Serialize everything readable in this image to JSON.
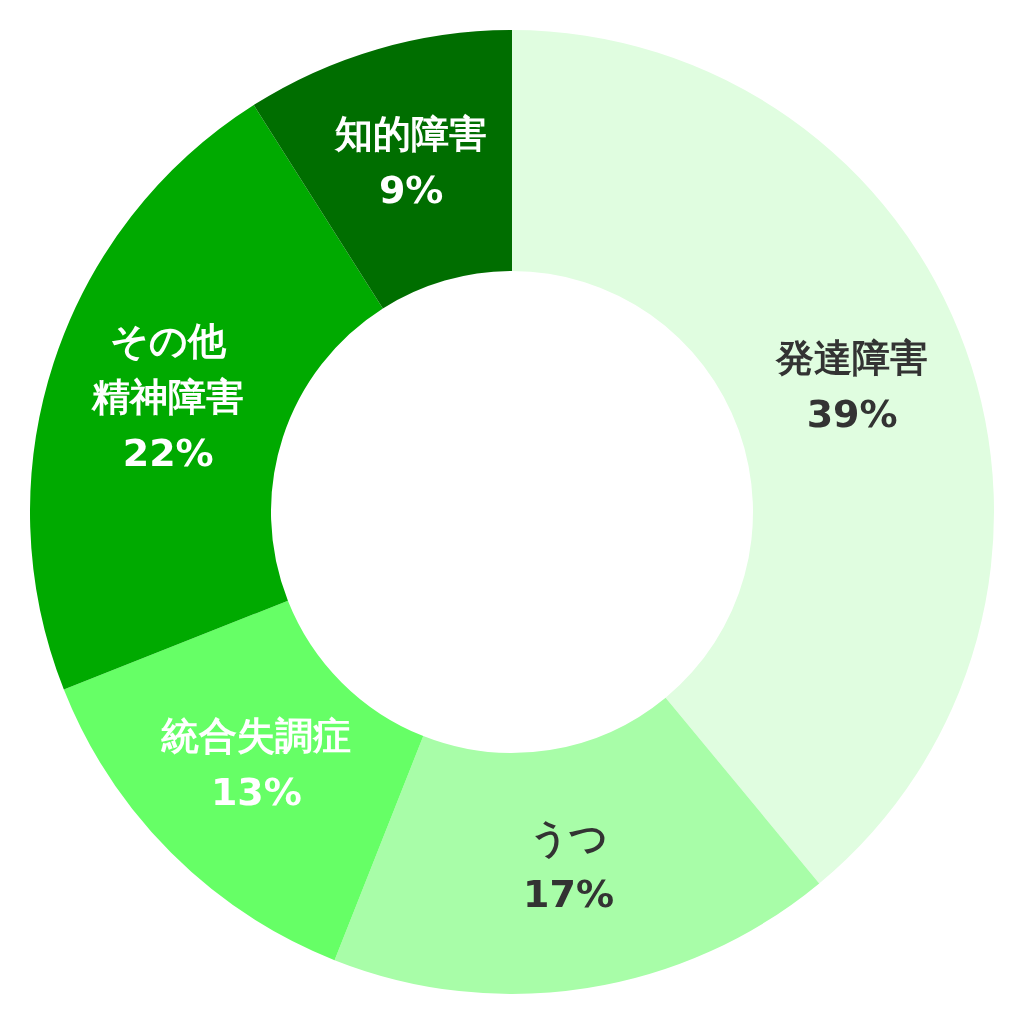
{
  "chart_data": {
    "type": "donut",
    "categories": [
      "発達障害",
      "うつ",
      "統合失調症",
      "その他精神障害",
      "知的障害"
    ],
    "values": [
      39,
      17,
      13,
      22,
      9
    ],
    "colors": [
      "#e0fde0",
      "#a8fda8",
      "#66ff66",
      "#00aa00",
      "#006e00"
    ],
    "value_labels": [
      "39%",
      "17%",
      "13%",
      "22%",
      "9%"
    ],
    "legend": false
  }
}
